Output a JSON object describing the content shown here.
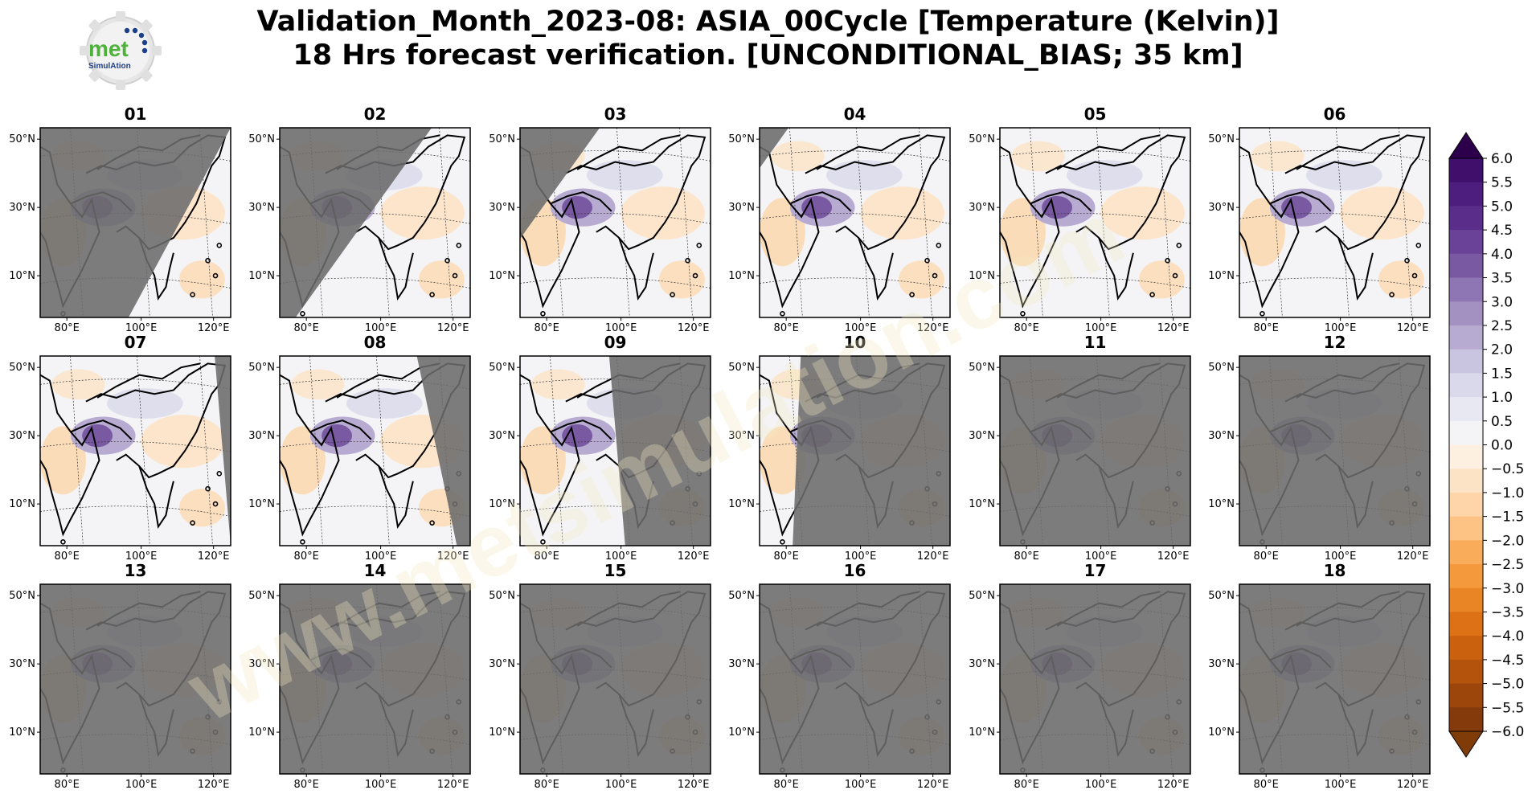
{
  "title": {
    "line1": "Validation_Month_2023-08: ASIA_00Cycle [Temperature (Kelvin)]",
    "line2": "18 Hrs forecast verification. [UNCONDITIONAL_BIAS; 35 km]"
  },
  "logo": {
    "text": "met",
    "subtext": "SimulAtion"
  },
  "watermark": "www.metsimulation.com",
  "panels": [
    "01",
    "02",
    "03",
    "04",
    "05",
    "06",
    "07",
    "08",
    "09",
    "10",
    "11",
    "12",
    "13",
    "14",
    "15",
    "16",
    "17",
    "18"
  ],
  "axes": {
    "lat_ticks": [
      "50°N",
      "30°N",
      "10°N"
    ],
    "lon_ticks": [
      "80°E",
      "100°E",
      "120°E"
    ]
  },
  "colorbar": {
    "levels": [
      "6.0",
      "5.5",
      "5.0",
      "4.5",
      "4.0",
      "3.5",
      "3.0",
      "2.5",
      "2.0",
      "1.5",
      "1.0",
      "0.5",
      "0.0",
      "−0.5",
      "−1.0",
      "−1.5",
      "−2.0",
      "−2.5",
      "−3.0",
      "−3.5",
      "−4.0",
      "−4.5",
      "−5.0",
      "−5.5",
      "−6.0"
    ],
    "colors": [
      "#3f0f6b",
      "#4d1e7e",
      "#5a2d8b",
      "#6a4297",
      "#7a59a3",
      "#8e75b3",
      "#a391c2",
      "#b7abd2",
      "#c9c4e0",
      "#dad8eb",
      "#e8e8f3",
      "#f4f4f6",
      "#fdf0e0",
      "#fde3c6",
      "#fdd5a8",
      "#fcc384",
      "#f9ad5b",
      "#f49a3c",
      "#ea8525",
      "#dc7116",
      "#c9610f",
      "#b4530c",
      "#9c460b",
      "#843a0a"
    ],
    "low_color": "#7f3b08",
    "high_color": "#2d004b"
  },
  "mask": {
    "color": "#6b6b6b",
    "coverage": [
      0.62,
      0.42,
      0.22,
      0.08,
      0.0,
      0.0,
      0.06,
      0.2,
      0.38,
      0.56,
      0.74,
      0.9,
      1.0,
      1.0,
      1.0,
      1.0,
      1.0,
      1.0
    ]
  }
}
